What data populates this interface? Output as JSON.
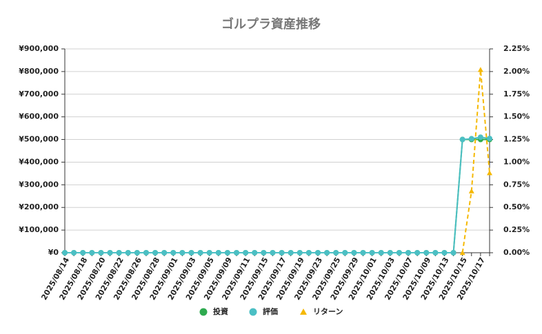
{
  "chart_data": {
    "type": "line",
    "title": "ゴルプラ資産推移",
    "categories": [
      "2025/08/14",
      null,
      "2025/08/18",
      null,
      "2025/08/20",
      null,
      "2025/08/22",
      null,
      "2025/08/26",
      null,
      "2025/08/28",
      null,
      "2025/09/01",
      null,
      "2025/09/03",
      null,
      "2025/09/05",
      null,
      "2025/09/09",
      null,
      "2025/09/11",
      null,
      "2025/09/15",
      null,
      "2025/09/17",
      null,
      "2025/09/19",
      null,
      "2025/09/23",
      null,
      "2025/09/25",
      null,
      "2025/09/29",
      null,
      "2025/10/01",
      null,
      "2025/10/03",
      null,
      "2025/10/07",
      null,
      "2025/10/09",
      null,
      "2025/10/13",
      null,
      "2025/10/15",
      null,
      "2025/10/17",
      null
    ],
    "series": [
      {
        "name": "投資",
        "color": "#2eaa4f",
        "marker": "circle",
        "values": [
          0,
          0,
          0,
          0,
          0,
          0,
          0,
          0,
          0,
          0,
          0,
          0,
          0,
          0,
          0,
          0,
          0,
          0,
          0,
          0,
          0,
          0,
          0,
          0,
          0,
          0,
          0,
          0,
          0,
          0,
          0,
          0,
          0,
          0,
          0,
          0,
          0,
          0,
          0,
          0,
          0,
          0,
          0,
          0,
          500000,
          500000,
          500000,
          500000
        ]
      },
      {
        "name": "評価",
        "color": "#4bbfc4",
        "marker": "circle",
        "values": [
          0,
          0,
          0,
          0,
          0,
          0,
          0,
          0,
          0,
          0,
          0,
          0,
          0,
          0,
          0,
          0,
          0,
          0,
          0,
          0,
          0,
          0,
          0,
          0,
          0,
          0,
          0,
          0,
          0,
          0,
          0,
          0,
          0,
          0,
          0,
          0,
          0,
          0,
          0,
          0,
          0,
          0,
          0,
          0,
          500000,
          503400,
          510100,
          504400
        ]
      },
      {
        "name": "リターン",
        "color": "#f5b800",
        "marker": "triangle",
        "dashed": true,
        "axis": "y2",
        "values": [
          null,
          null,
          null,
          null,
          null,
          null,
          null,
          null,
          null,
          null,
          null,
          null,
          null,
          null,
          null,
          null,
          null,
          null,
          null,
          null,
          null,
          null,
          null,
          null,
          null,
          null,
          null,
          null,
          null,
          null,
          null,
          null,
          null,
          null,
          null,
          null,
          null,
          null,
          null,
          null,
          null,
          null,
          null,
          null,
          0,
          0.68,
          2.02,
          0.88
        ]
      }
    ],
    "ylim": [
      0,
      900000
    ],
    "yticks": [
      {
        "value": 0,
        "label": "¥0"
      },
      {
        "value": 100000,
        "label": "¥100,000"
      },
      {
        "value": 200000,
        "label": "¥200,000"
      },
      {
        "value": 300000,
        "label": "¥300,000"
      },
      {
        "value": 400000,
        "label": "¥400,000"
      },
      {
        "value": 500000,
        "label": "¥500,000"
      },
      {
        "value": 600000,
        "label": "¥600,000"
      },
      {
        "value": 700000,
        "label": "¥700,000"
      },
      {
        "value": 800000,
        "label": "¥800,000"
      },
      {
        "value": 900000,
        "label": "¥900,000"
      }
    ],
    "y2lim": [
      0,
      2.25
    ],
    "y2ticks": [
      {
        "value": 0,
        "label": "0.00%"
      },
      {
        "value": 0.25,
        "label": "0.25%"
      },
      {
        "value": 0.5,
        "label": "0.50%"
      },
      {
        "value": 0.75,
        "label": "0.75%"
      },
      {
        "value": 1,
        "label": "1.00%"
      },
      {
        "value": 1.25,
        "label": "1.25%"
      },
      {
        "value": 1.5,
        "label": "1.50%"
      },
      {
        "value": 1.75,
        "label": "1.75%"
      },
      {
        "value": 2,
        "label": "2.00%"
      },
      {
        "value": 2.25,
        "label": "2.25%"
      }
    ],
    "grid": true,
    "legend": "bottom"
  }
}
